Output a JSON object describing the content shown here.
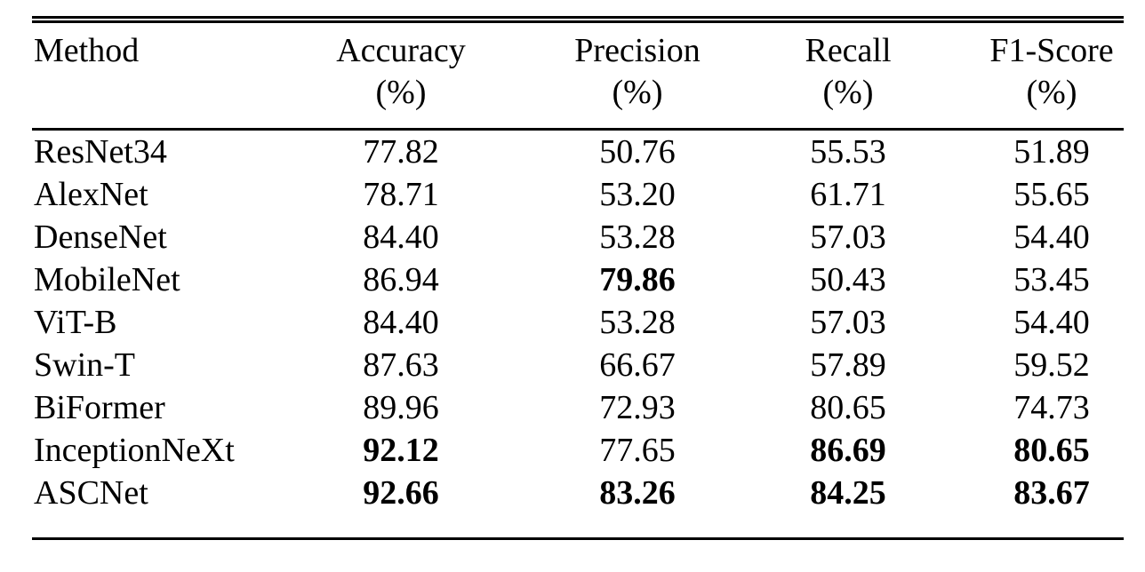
{
  "figure": {
    "kind": "academic-results-table"
  },
  "colors": {
    "background": "#ffffff",
    "text": "#000000",
    "rule": "#000000"
  },
  "table": {
    "columns": [
      {
        "label": "Method",
        "unit": ""
      },
      {
        "label": "Accuracy",
        "unit": "(%)"
      },
      {
        "label": "Precision",
        "unit": "(%)"
      },
      {
        "label": "Recall",
        "unit": "(%)"
      },
      {
        "label": "F1-Score",
        "unit": "(%)"
      }
    ],
    "rows": [
      {
        "method": "ResNet34",
        "accuracy": "77.82",
        "precision": "50.76",
        "recall": "55.53",
        "f1": "51.89",
        "bold": []
      },
      {
        "method": "AlexNet",
        "accuracy": "78.71",
        "precision": "53.20",
        "recall": "61.71",
        "f1": "55.65",
        "bold": []
      },
      {
        "method": "DenseNet",
        "accuracy": "84.40",
        "precision": "53.28",
        "recall": "57.03",
        "f1": "54.40",
        "bold": []
      },
      {
        "method": "MobileNet",
        "accuracy": "86.94",
        "precision": "79.86",
        "recall": "50.43",
        "f1": "53.45",
        "bold": [
          "precision"
        ]
      },
      {
        "method": "ViT-B",
        "accuracy": "84.40",
        "precision": "53.28",
        "recall": "57.03",
        "f1": "54.40",
        "bold": []
      },
      {
        "method": "Swin-T",
        "accuracy": "87.63",
        "precision": "66.67",
        "recall": "57.89",
        "f1": "59.52",
        "bold": []
      },
      {
        "method": "BiFormer",
        "accuracy": "89.96",
        "precision": "72.93",
        "recall": "80.65",
        "f1": "74.73",
        "bold": []
      },
      {
        "method": "InceptionNeXt",
        "accuracy": "92.12",
        "precision": "77.65",
        "recall": "86.69",
        "f1": "80.65",
        "bold": [
          "accuracy",
          "recall",
          "f1"
        ]
      },
      {
        "method": "ASCNet",
        "accuracy": "92.66",
        "precision": "83.26",
        "recall": "84.25",
        "f1": "83.67",
        "bold": [
          "accuracy",
          "precision",
          "recall",
          "f1"
        ]
      }
    ]
  },
  "chart_data": {
    "type": "table",
    "columns": [
      "Method",
      "Accuracy (%)",
      "Precision (%)",
      "Recall (%)",
      "F1-Score (%)"
    ],
    "rows": [
      [
        "ResNet34",
        77.82,
        50.76,
        55.53,
        51.89
      ],
      [
        "AlexNet",
        78.71,
        53.2,
        61.71,
        55.65
      ],
      [
        "DenseNet",
        84.4,
        53.28,
        57.03,
        54.4
      ],
      [
        "MobileNet",
        86.94,
        79.86,
        50.43,
        53.45
      ],
      [
        "ViT-B",
        84.4,
        53.28,
        57.03,
        54.4
      ],
      [
        "Swin-T",
        87.63,
        66.67,
        57.89,
        59.52
      ],
      [
        "BiFormer",
        89.96,
        72.93,
        80.65,
        74.73
      ],
      [
        "InceptionNeXt",
        92.12,
        77.65,
        86.69,
        80.65
      ],
      [
        "ASCNet",
        92.66,
        83.26,
        84.25,
        83.67
      ]
    ],
    "bold_cells": [
      [
        "MobileNet",
        "Precision (%)"
      ],
      [
        "InceptionNeXt",
        "Accuracy (%)"
      ],
      [
        "InceptionNeXt",
        "Recall (%)"
      ],
      [
        "InceptionNeXt",
        "F1-Score (%)"
      ],
      [
        "ASCNet",
        "Accuracy (%)"
      ],
      [
        "ASCNet",
        "Precision (%)"
      ],
      [
        "ASCNet",
        "Recall (%)"
      ],
      [
        "ASCNet",
        "F1-Score (%)"
      ]
    ]
  }
}
